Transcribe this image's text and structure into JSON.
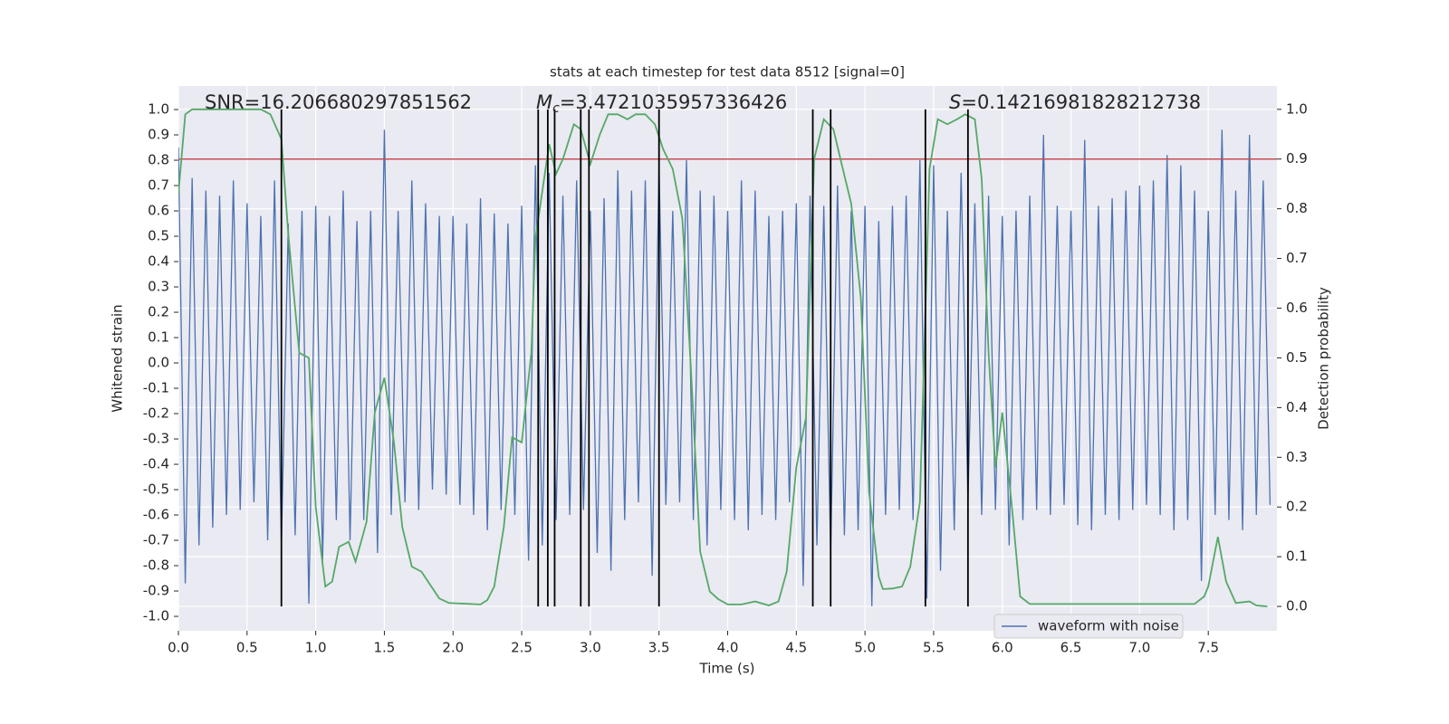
{
  "chart_data": {
    "type": "line",
    "title": "stats at each timestep for test data 8512 [signal=0]",
    "xlabel": "Time (s)",
    "ylabel": "Whitened strain",
    "y2label": "Detection probability",
    "xlim": [
      0,
      8.0
    ],
    "ylim": [
      -1.057,
      1.093
    ],
    "y2lim": [
      -0.049,
      1.047
    ],
    "xticks": [
      {
        "value": 0,
        "label": "0.0"
      },
      0.5,
      {
        "value": 1,
        "label": "1.0"
      },
      1.5,
      {
        "value": 2,
        "label": "2.0"
      },
      2.5,
      {
        "value": 3,
        "label": "3.0"
      },
      3.5,
      {
        "value": 4,
        "label": "4.0"
      },
      4.5,
      {
        "value": 5,
        "label": "5.0"
      },
      5.5,
      {
        "value": 6,
        "label": "6.0"
      },
      6.5,
      {
        "value": 7,
        "label": "7.0"
      },
      7.5
    ],
    "yticks": [
      {
        "value": 1,
        "label": "1.0"
      },
      0.9,
      0.8,
      0.7,
      0.6,
      0.5,
      0.4,
      0.3,
      0.2,
      0.1,
      {
        "value": 0,
        "label": "0.0"
      },
      -0.1,
      -0.2,
      -0.3,
      -0.4,
      -0.5,
      -0.6,
      -0.7,
      -0.8,
      -0.9,
      {
        "value": -1,
        "label": "-1.0"
      }
    ],
    "y2ticks": [
      {
        "value": 0,
        "label": "0.0"
      },
      0.1,
      0.2,
      0.3,
      0.4,
      0.5,
      0.6,
      0.7,
      0.8,
      0.9,
      {
        "value": 1,
        "label": "1.0"
      }
    ],
    "grid": true,
    "legend_loc": "lower right",
    "threshold": {
      "value": 0.9,
      "color": "#c44e52",
      "axis": "y2"
    },
    "vlines": {
      "x": [
        0.75,
        2.62,
        2.69,
        2.74,
        2.93,
        2.99,
        3.5,
        4.62,
        4.75,
        5.44,
        5.75
      ],
      "color": "#000000"
    },
    "annotations": [
      {
        "text": "SNR=16.206680297851562"
      },
      {
        "symbol": "M",
        "subscript": "c",
        "text": "=3.4721035957336426"
      },
      {
        "symbol": "S",
        "text": "=0.14216981828212738"
      }
    ],
    "series": [
      {
        "name": "waveform with noise",
        "color": "#4c72b0",
        "x": [
          0,
          0.05,
          0.1,
          0.15,
          0.2,
          0.25,
          0.3,
          0.35,
          0.4,
          0.45,
          0.5,
          0.55,
          0.6,
          0.65,
          0.7,
          0.75,
          0.8,
          0.85,
          0.9,
          0.95,
          1,
          1.05,
          1.1,
          1.15,
          1.2,
          1.25,
          1.3,
          1.35,
          1.4,
          1.45,
          1.5,
          1.55,
          1.6,
          1.65,
          1.7,
          1.75,
          1.8,
          1.85,
          1.9,
          1.95,
          2,
          2.05,
          2.1,
          2.15,
          2.2,
          2.25,
          2.3,
          2.35,
          2.4,
          2.45,
          2.5,
          2.55,
          2.6,
          2.65,
          2.7,
          2.75,
          2.8,
          2.85,
          2.9,
          2.95,
          3,
          3.05,
          3.1,
          3.15,
          3.2,
          3.25,
          3.3,
          3.35,
          3.4,
          3.45,
          3.5,
          3.55,
          3.6,
          3.65,
          3.7,
          3.75,
          3.8,
          3.85,
          3.9,
          3.95,
          4,
          4.05,
          4.1,
          4.15,
          4.2,
          4.25,
          4.3,
          4.35,
          4.4,
          4.45,
          4.5,
          4.55,
          4.6,
          4.65,
          4.7,
          4.75,
          4.8,
          4.85,
          4.9,
          4.95,
          5,
          5.05,
          5.1,
          5.15,
          5.2,
          5.25,
          5.3,
          5.35,
          5.4,
          5.45,
          5.5,
          5.55,
          5.6,
          5.65,
          5.7,
          5.75,
          5.8,
          5.85,
          5.9,
          5.95,
          6,
          6.05,
          6.1,
          6.15,
          6.2,
          6.25,
          6.3,
          6.35,
          6.4,
          6.45,
          6.5,
          6.55,
          6.6,
          6.65,
          6.7,
          6.75,
          6.8,
          6.85,
          6.9,
          6.95,
          7,
          7.05,
          7.1,
          7.15,
          7.2,
          7.25,
          7.3,
          7.35,
          7.4,
          7.45,
          7.5,
          7.55,
          7.6,
          7.65,
          7.7,
          7.75,
          7.8,
          7.85,
          7.9,
          7.95
        ],
        "values": [
          0.85,
          -0.87,
          0.73,
          -0.72,
          0.68,
          -0.65,
          0.66,
          -0.6,
          0.72,
          -0.58,
          0.63,
          -0.55,
          0.58,
          -0.7,
          0.72,
          -0.72,
          0.55,
          -0.68,
          0.6,
          -0.95,
          0.62,
          -0.78,
          0.58,
          -0.62,
          0.68,
          -0.7,
          0.56,
          -0.62,
          0.6,
          -0.75,
          0.92,
          -0.6,
          0.6,
          -0.55,
          0.72,
          -0.58,
          0.63,
          -0.5,
          0.58,
          -0.52,
          0.58,
          -0.56,
          0.55,
          -0.6,
          0.65,
          -0.66,
          0.59,
          -0.58,
          0.55,
          -0.6,
          0.62,
          -0.78,
          0.78,
          -0.72,
          0.75,
          -0.62,
          0.66,
          -0.6,
          0.72,
          -0.58,
          0.6,
          -0.75,
          0.65,
          -0.82,
          0.76,
          -0.62,
          0.68,
          -0.55,
          0.72,
          -0.84,
          0.78,
          -0.56,
          0.6,
          -0.55,
          0.8,
          -0.62,
          0.68,
          -0.72,
          0.66,
          -0.58,
          0.6,
          -0.62,
          0.72,
          -0.66,
          0.68,
          -0.6,
          0.58,
          -0.62,
          0.6,
          -0.55,
          0.63,
          -0.88,
          0.66,
          -0.72,
          0.62,
          -0.75,
          0.7,
          -0.68,
          0.6,
          -0.66,
          0.62,
          -0.96,
          0.56,
          -0.6,
          0.62,
          -0.58,
          0.66,
          -0.62,
          0.8,
          -0.93,
          0.78,
          -0.82,
          0.6,
          -0.66,
          0.75,
          -0.55,
          0.63,
          -0.6,
          0.66,
          -0.58,
          0.58,
          -0.72,
          0.6,
          -0.62,
          0.66,
          -0.58,
          0.9,
          -0.6,
          0.62,
          -0.56,
          0.6,
          -0.64,
          0.88,
          -0.66,
          0.62,
          -0.6,
          0.65,
          -0.62,
          0.68,
          -0.58,
          0.7,
          -0.56,
          0.72,
          -0.6,
          0.82,
          -0.66,
          0.78,
          -0.62,
          0.68,
          -0.86,
          0.6,
          -0.6,
          0.92,
          -0.62,
          0.68,
          -0.66,
          0.9,
          -0.6,
          0.72,
          -0.56
        ]
      },
      {
        "color": "#55a868",
        "axis": "y2",
        "x": [
          0,
          0.05,
          0.1,
          0.6,
          0.67,
          0.75,
          0.8,
          0.88,
          0.95,
          1,
          1.07,
          1.12,
          1.17,
          1.24,
          1.29,
          1.37,
          1.43,
          1.5,
          1.57,
          1.63,
          1.7,
          1.77,
          1.83,
          1.9,
          1.97,
          2.2,
          2.25,
          2.3,
          2.37,
          2.43,
          2.5,
          2.57,
          2.6,
          2.7,
          2.75,
          2.8,
          2.88,
          2.93,
          3,
          3.07,
          3.13,
          3.2,
          3.27,
          3.33,
          3.4,
          3.47,
          3.53,
          3.6,
          3.67,
          3.73,
          3.8,
          3.87,
          3.93,
          4,
          4.1,
          4.2,
          4.3,
          4.37,
          4.43,
          4.5,
          4.57,
          4.63,
          4.7,
          4.77,
          4.83,
          4.9,
          4.97,
          5.03,
          5.1,
          5.13,
          5.2,
          5.27,
          5.33,
          5.4,
          5.47,
          5.53,
          5.6,
          5.67,
          5.73,
          5.8,
          5.85,
          5.9,
          5.95,
          6,
          6.07,
          6.13,
          6.2,
          7.4,
          7.47,
          7.5,
          7.57,
          7.63,
          7.7,
          7.8,
          7.85,
          7.93
        ],
        "values": [
          0.83,
          0.99,
          1,
          1,
          0.99,
          0.94,
          0.75,
          0.51,
          0.5,
          0.2,
          0.04,
          0.05,
          0.12,
          0.13,
          0.09,
          0.17,
          0.39,
          0.46,
          0.33,
          0.16,
          0.08,
          0.07,
          0.045,
          0.016,
          0.007,
          0.004,
          0.013,
          0.04,
          0.16,
          0.34,
          0.33,
          0.51,
          0.74,
          0.93,
          0.87,
          0.9,
          0.97,
          0.96,
          0.89,
          0.95,
          0.99,
          0.99,
          0.98,
          0.99,
          0.99,
          0.97,
          0.92,
          0.88,
          0.78,
          0.49,
          0.11,
          0.03,
          0.015,
          0.004,
          0.004,
          0.01,
          0.002,
          0.01,
          0.07,
          0.28,
          0.38,
          0.9,
          0.98,
          0.96,
          0.89,
          0.81,
          0.62,
          0.23,
          0.06,
          0.035,
          0.036,
          0.04,
          0.08,
          0.21,
          0.88,
          0.98,
          0.97,
          0.98,
          0.99,
          0.98,
          0.86,
          0.51,
          0.28,
          0.39,
          0.2,
          0.02,
          0.005,
          0.005,
          0.02,
          0.04,
          0.14,
          0.05,
          0.007,
          0.01,
          0.002,
          0
        ]
      }
    ]
  }
}
